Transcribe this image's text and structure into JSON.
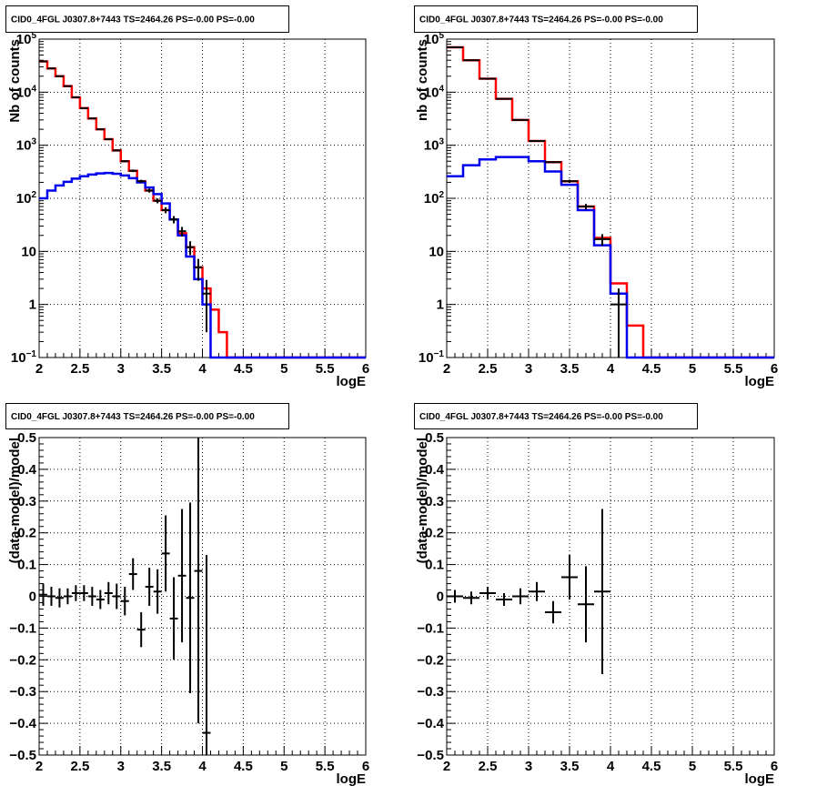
{
  "chart_data": [
    {
      "type": "line",
      "title": "CID0_4FGL J0307.8+7443 TS=2464.26 PS=-0.00 PS=-0.00",
      "xlabel": "logE",
      "ylabel": "Nb of counts",
      "xlim": [
        2,
        6
      ],
      "ylim": [
        0.1,
        100000
      ],
      "yscale": "log",
      "xticks": [
        "2",
        "2.5",
        "3",
        "3.5",
        "4",
        "4.5",
        "5",
        "5.5",
        "6"
      ],
      "yticks": [
        {
          "value": 0.1,
          "base": "10",
          "exp": "−1"
        },
        {
          "value": 1,
          "label": "1"
        },
        {
          "value": 10,
          "label": "10"
        },
        {
          "value": 100,
          "base": "10",
          "exp": "2"
        },
        {
          "value": 1000,
          "base": "10",
          "exp": "3"
        },
        {
          "value": 10000,
          "base": "10",
          "exp": "4"
        },
        {
          "value": 100000,
          "base": "10",
          "exp": "5"
        }
      ],
      "grid": true,
      "bin_edges": [
        2.0,
        2.1,
        2.2,
        2.3,
        2.4,
        2.5,
        2.6,
        2.7,
        2.8,
        2.9,
        3.0,
        3.1,
        3.2,
        3.3,
        3.4,
        3.5,
        3.6,
        3.7,
        3.8,
        3.9,
        4.0,
        4.1,
        4.2,
        4.3,
        4.4,
        4.5,
        4.6,
        4.7,
        4.8,
        4.9,
        5.0,
        5.1,
        5.2,
        5.3,
        5.4,
        5.5,
        5.6,
        5.7,
        5.8,
        5.9,
        6.0
      ],
      "series": [
        {
          "color": "#ff0000",
          "style": "hist",
          "values": [
            38000,
            28000,
            20000,
            13000,
            8000,
            5000,
            3200,
            2000,
            1300,
            800,
            500,
            330,
            210,
            140,
            90,
            60,
            40,
            22,
            12,
            5,
            2,
            0.8,
            0.3,
            0.1,
            0.1,
            0.1,
            0.1,
            0.1,
            0.1,
            0.1,
            0.1,
            0.1,
            0.1,
            0.1,
            0.1,
            0.1,
            0.1,
            0.1,
            0.1,
            0.1
          ]
        },
        {
          "color": "#0000ee",
          "style": "hist",
          "values": [
            100,
            140,
            175,
            205,
            235,
            260,
            280,
            295,
            300,
            290,
            270,
            240,
            200,
            160,
            120,
            80,
            40,
            20,
            8,
            3,
            1,
            0.1,
            0.1,
            0.1,
            0.1,
            0.1,
            0.1,
            0.1,
            0.1,
            0.1,
            0.1,
            0.1,
            0.1,
            0.1,
            0.1,
            0.1,
            0.1,
            0.1,
            0.1,
            0.1
          ]
        },
        {
          "color": "#000000",
          "style": "points",
          "x": [
            2.05,
            2.15,
            2.25,
            2.35,
            2.45,
            2.55,
            2.65,
            2.75,
            2.85,
            2.95,
            3.05,
            3.15,
            3.25,
            3.35,
            3.45,
            3.55,
            3.65,
            3.75,
            3.85,
            3.95,
            4.05
          ],
          "y": [
            38000,
            28000,
            20000,
            13000,
            8000,
            5000,
            3200,
            2000,
            1300,
            800,
            500,
            330,
            210,
            140,
            90,
            60,
            40,
            24,
            12,
            5,
            1.6
          ],
          "yerr": [
            195,
            167,
            141,
            114,
            89,
            71,
            57,
            45,
            36,
            28,
            22,
            18,
            14,
            12,
            9.5,
            7.7,
            6.3,
            4.9,
            3.5,
            2.2,
            1.3
          ]
        }
      ]
    },
    {
      "type": "line",
      "title": "CID0_4FGL J0307.8+7443 TS=2464.26 PS=-0.00 PS=-0.00",
      "xlabel": "logE",
      "ylabel": "nb of counts",
      "xlim": [
        2,
        6
      ],
      "ylim": [
        0.1,
        100000
      ],
      "yscale": "log",
      "xticks": [
        "2",
        "2.5",
        "3",
        "3.5",
        "4",
        "4.5",
        "5",
        "5.5",
        "6"
      ],
      "yticks": [
        {
          "value": 0.1,
          "base": "10",
          "exp": "−1"
        },
        {
          "value": 1,
          "label": "1"
        },
        {
          "value": 10,
          "label": "10"
        },
        {
          "value": 100,
          "base": "10",
          "exp": "2"
        },
        {
          "value": 1000,
          "base": "10",
          "exp": "3"
        },
        {
          "value": 10000,
          "base": "10",
          "exp": "4"
        },
        {
          "value": 100000,
          "base": "10",
          "exp": "5"
        }
      ],
      "grid": true,
      "bin_edges": [
        2.0,
        2.2,
        2.4,
        2.6,
        2.8,
        3.0,
        3.2,
        3.4,
        3.6,
        3.8,
        4.0,
        4.2,
        4.4,
        4.6,
        4.8,
        5.0,
        5.2,
        5.4,
        5.6,
        5.8,
        6.0
      ],
      "series": [
        {
          "color": "#ff0000",
          "style": "hist",
          "values": [
            70000,
            40000,
            18000,
            7500,
            3000,
            1200,
            480,
            210,
            70,
            18,
            2.5,
            0.4,
            0.1,
            0.1,
            0.1,
            0.1,
            0.1,
            0.1,
            0.1,
            0.1
          ]
        },
        {
          "color": "#0000ee",
          "style": "hist",
          "values": [
            260,
            420,
            540,
            600,
            600,
            500,
            320,
            180,
            60,
            13,
            1.6,
            0.1,
            0.1,
            0.1,
            0.1,
            0.1,
            0.1,
            0.1,
            0.1,
            0.1
          ]
        },
        {
          "color": "#000000",
          "style": "points",
          "x": [
            2.1,
            2.3,
            2.5,
            2.7,
            2.9,
            3.1,
            3.3,
            3.5,
            3.7,
            3.9,
            4.1
          ],
          "y": [
            70000,
            40000,
            18000,
            7500,
            3000,
            1200,
            480,
            210,
            70,
            17,
            1
          ],
          "yerr": [
            265,
            200,
            134,
            87,
            55,
            35,
            22,
            14.5,
            8.4,
            4.1,
            1
          ]
        }
      ]
    },
    {
      "type": "scatter",
      "title": "CID0_4FGL J0307.8+7443 TS=2464.26 PS=-0.00 PS=-0.00",
      "xlabel": "logE",
      "ylabel": "(data-model)/model",
      "xlim": [
        2,
        6
      ],
      "ylim": [
        -0.5,
        0.5
      ],
      "xticks": [
        "2",
        "2.5",
        "3",
        "3.5",
        "4",
        "4.5",
        "5",
        "5.5",
        "6"
      ],
      "yticks": [
        {
          "value": -0.5,
          "label": "−0.5"
        },
        {
          "value": -0.4,
          "label": "−0.4"
        },
        {
          "value": -0.3,
          "label": "−0.3"
        },
        {
          "value": -0.2,
          "label": "−0.2"
        },
        {
          "value": -0.1,
          "label": "−0.1"
        },
        {
          "value": 0,
          "label": "0"
        },
        {
          "value": 0.1,
          "label": "0.1"
        },
        {
          "value": 0.2,
          "label": "0.2"
        },
        {
          "value": 0.3,
          "label": "0.3"
        },
        {
          "value": 0.4,
          "label": "0.4"
        },
        {
          "value": 0.5,
          "label": "0.5"
        }
      ],
      "grid": true,
      "series": [
        {
          "color": "#000000",
          "style": "points",
          "xerr": 0.05,
          "x": [
            2.05,
            2.15,
            2.25,
            2.35,
            2.45,
            2.55,
            2.65,
            2.75,
            2.85,
            2.95,
            3.05,
            3.15,
            3.25,
            3.35,
            3.45,
            3.55,
            3.65,
            3.75,
            3.85,
            3.95,
            4.05
          ],
          "y": [
            0.005,
            0.0,
            -0.005,
            0.0,
            0.01,
            0.01,
            0.0,
            -0.01,
            0.01,
            0.0,
            -0.015,
            0.07,
            -0.105,
            0.03,
            0.015,
            0.135,
            -0.07,
            0.065,
            -0.005,
            0.08,
            -0.43
          ],
          "yerr": [
            0.035,
            0.03,
            0.03,
            0.025,
            0.025,
            0.025,
            0.03,
            0.03,
            0.035,
            0.04,
            0.045,
            0.05,
            0.055,
            0.06,
            0.07,
            0.12,
            0.13,
            0.21,
            0.3,
            0.48,
            0.56
          ]
        }
      ]
    },
    {
      "type": "scatter",
      "title": "CID0_4FGL J0307.8+7443 TS=2464.26 PS=-0.00 PS=-0.00",
      "xlabel": "logE",
      "ylabel": "(data-model)/model",
      "xlim": [
        2,
        6
      ],
      "ylim": [
        -0.5,
        0.5
      ],
      "xticks": [
        "2",
        "2.5",
        "3",
        "3.5",
        "4",
        "4.5",
        "5",
        "5.5",
        "6"
      ],
      "yticks": [
        {
          "value": -0.5,
          "label": "−0.5"
        },
        {
          "value": -0.4,
          "label": "−0.4"
        },
        {
          "value": -0.3,
          "label": "−0.3"
        },
        {
          "value": -0.2,
          "label": "−0.2"
        },
        {
          "value": -0.1,
          "label": "−0.1"
        },
        {
          "value": 0,
          "label": "0"
        },
        {
          "value": 0.1,
          "label": "0.1"
        },
        {
          "value": 0.2,
          "label": "0.2"
        },
        {
          "value": 0.3,
          "label": "0.3"
        },
        {
          "value": 0.4,
          "label": "0.4"
        },
        {
          "value": 0.5,
          "label": "0.5"
        }
      ],
      "grid": true,
      "series": [
        {
          "color": "#000000",
          "style": "points",
          "xerr": 0.1,
          "x": [
            2.1,
            2.3,
            2.5,
            2.7,
            2.9,
            3.1,
            3.3,
            3.5,
            3.7,
            3.9
          ],
          "y": [
            0.0,
            -0.005,
            0.01,
            -0.01,
            0.0,
            0.015,
            -0.05,
            0.06,
            -0.025,
            0.015
          ],
          "yerr": [
            0.02,
            0.02,
            0.02,
            0.02,
            0.025,
            0.03,
            0.035,
            0.07,
            0.12,
            0.26
          ]
        }
      ]
    }
  ]
}
